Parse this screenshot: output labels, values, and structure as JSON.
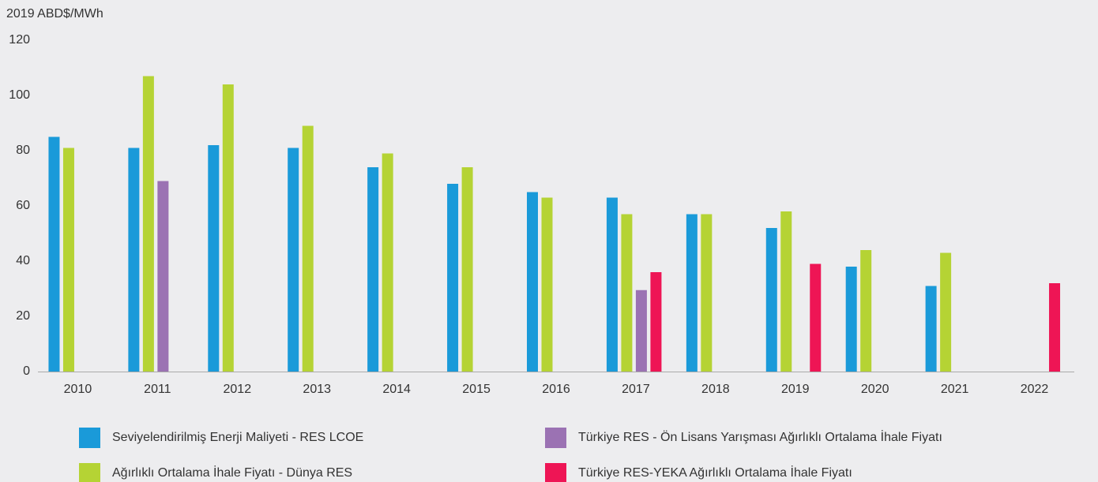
{
  "chart_data": {
    "type": "bar",
    "y_label": "2019 ABD$/MWh",
    "categories": [
      "2010",
      "2011",
      "2012",
      "2013",
      "2014",
      "2015",
      "2016",
      "2017",
      "2018",
      "2019",
      "2020",
      "2021",
      "2022"
    ],
    "series": [
      {
        "name": "Seviyelendirilmiş Enerji Maliyeti - RES LCOE",
        "color": "#1a9ad9",
        "values": [
          85,
          81,
          82,
          81,
          74,
          68,
          65,
          63,
          57,
          52,
          38,
          31,
          null
        ]
      },
      {
        "name": "Ağırlıklı Ortalama İhale Fiyatı - Dünya RES",
        "color": "#b5d334",
        "values": [
          81,
          107,
          104,
          89,
          79,
          74,
          63,
          57,
          57,
          58,
          44,
          43,
          null
        ]
      },
      {
        "name": "Türkiye RES - Ön Lisans Yarışması Ağırlıklı Ortalama İhale Fiyatı",
        "color": "#9b72b3",
        "values": [
          null,
          69,
          null,
          null,
          null,
          null,
          null,
          29.5,
          null,
          null,
          null,
          null,
          null
        ]
      },
      {
        "name": "Türkiye RES-YEKA Ağırlıklı Ortalama İhale Fiyatı",
        "color": "#ee1555",
        "values": [
          null,
          null,
          null,
          null,
          null,
          null,
          null,
          36,
          null,
          39,
          null,
          null,
          32
        ]
      }
    ],
    "ylim": [
      0,
      120
    ],
    "yticks": [
      0,
      20,
      40,
      60,
      80,
      100,
      120
    ],
    "grid": false
  }
}
